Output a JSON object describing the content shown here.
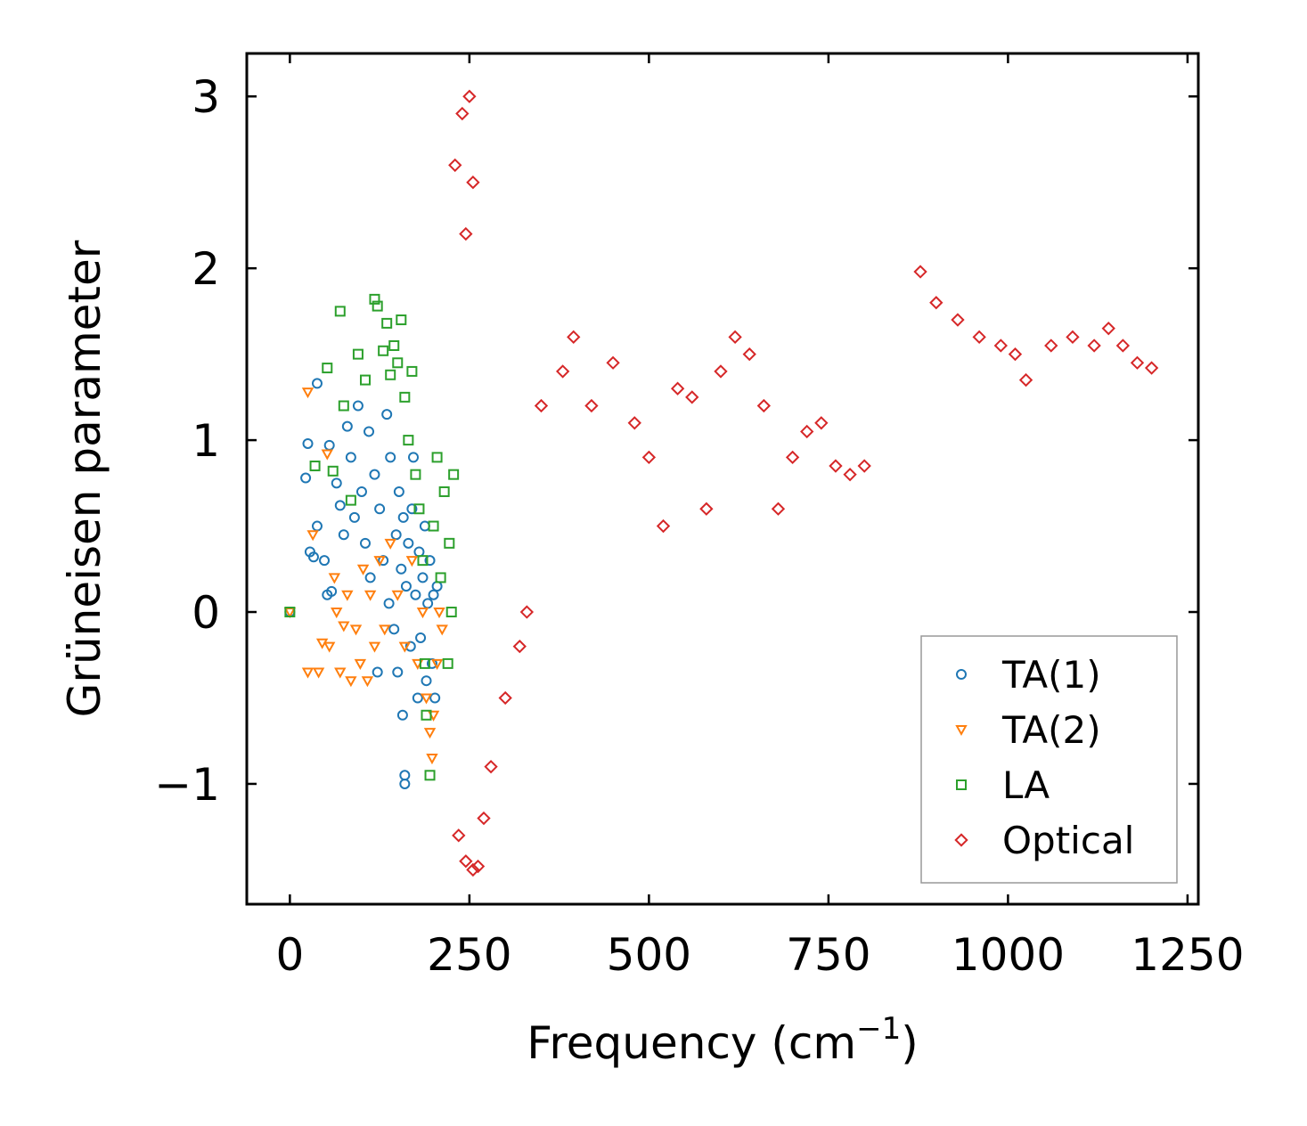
{
  "chart_data": {
    "type": "scatter",
    "title": "",
    "xlabel": "Frequency (cm",
    "xlabel_sup": "−1",
    "xlabel_end": ")",
    "ylabel": "Grüneisen parameter",
    "xlim": [
      -60,
      1265
    ],
    "ylim": [
      -1.7,
      3.25
    ],
    "xticks": [
      0,
      250,
      500,
      750,
      1000,
      1250
    ],
    "xtick_labels": [
      "0",
      "250",
      "500",
      "750",
      "1000",
      "1250"
    ],
    "yticks": [
      -1,
      0,
      1,
      2,
      3
    ],
    "ytick_labels": [
      "−1",
      "0",
      "1",
      "2",
      "3"
    ],
    "grid": false,
    "legend_position": "bottom-right",
    "series": [
      {
        "name": "TA(1)",
        "marker": "circle",
        "color": "#1f77b4",
        "points": [
          [
            0,
            0
          ],
          [
            25,
            0.98
          ],
          [
            22,
            0.78
          ],
          [
            28,
            0.35
          ],
          [
            38,
            1.33
          ],
          [
            33,
            0.32
          ],
          [
            38,
            0.5
          ],
          [
            48,
            0.3
          ],
          [
            55,
            0.97
          ],
          [
            52,
            0.1
          ],
          [
            58,
            0.12
          ],
          [
            65,
            0.75
          ],
          [
            70,
            0.62
          ],
          [
            75,
            0.45
          ],
          [
            80,
            1.08
          ],
          [
            85,
            0.9
          ],
          [
            90,
            0.55
          ],
          [
            95,
            1.2
          ],
          [
            100,
            0.7
          ],
          [
            105,
            0.4
          ],
          [
            110,
            1.05
          ],
          [
            112,
            0.2
          ],
          [
            118,
            0.8
          ],
          [
            122,
            -0.35
          ],
          [
            125,
            0.6
          ],
          [
            130,
            0.3
          ],
          [
            135,
            1.15
          ],
          [
            138,
            0.05
          ],
          [
            140,
            0.9
          ],
          [
            145,
            -0.1
          ],
          [
            148,
            0.45
          ],
          [
            150,
            -0.35
          ],
          [
            152,
            0.7
          ],
          [
            155,
            0.25
          ],
          [
            157,
            -0.6
          ],
          [
            158,
            0.55
          ],
          [
            160,
            -0.95
          ],
          [
            160,
            -1.0
          ],
          [
            162,
            0.15
          ],
          [
            165,
            0.4
          ],
          [
            168,
            -0.2
          ],
          [
            170,
            0.6
          ],
          [
            172,
            0.9
          ],
          [
            175,
            0.1
          ],
          [
            178,
            -0.5
          ],
          [
            180,
            0.35
          ],
          [
            182,
            -0.15
          ],
          [
            185,
            0.2
          ],
          [
            188,
            0.5
          ],
          [
            190,
            -0.4
          ],
          [
            192,
            0.05
          ],
          [
            195,
            0.3
          ],
          [
            198,
            -0.3
          ],
          [
            200,
            0.1
          ],
          [
            202,
            -0.5
          ],
          [
            205,
            0.15
          ]
        ]
      },
      {
        "name": "TA(2)",
        "marker": "triangle-down",
        "color": "#ff7f0e",
        "points": [
          [
            0,
            0
          ],
          [
            25,
            1.28
          ],
          [
            25,
            -0.35
          ],
          [
            32,
            0.45
          ],
          [
            40,
            -0.35
          ],
          [
            45,
            -0.18
          ],
          [
            52,
            0.92
          ],
          [
            55,
            -0.2
          ],
          [
            62,
            0.2
          ],
          [
            65,
            0.0
          ],
          [
            70,
            -0.35
          ],
          [
            75,
            -0.08
          ],
          [
            80,
            0.1
          ],
          [
            85,
            -0.4
          ],
          [
            92,
            -0.1
          ],
          [
            98,
            -0.3
          ],
          [
            102,
            0.25
          ],
          [
            108,
            -0.4
          ],
          [
            112,
            0.1
          ],
          [
            118,
            -0.2
          ],
          [
            125,
            0.3
          ],
          [
            132,
            -0.1
          ],
          [
            140,
            0.4
          ],
          [
            150,
            0.1
          ],
          [
            160,
            -0.2
          ],
          [
            170,
            0.3
          ],
          [
            178,
            -0.3
          ],
          [
            185,
            0.0
          ],
          [
            190,
            -0.5
          ],
          [
            195,
            -0.7
          ],
          [
            198,
            -0.85
          ],
          [
            200,
            -0.6
          ],
          [
            205,
            -0.3
          ],
          [
            208,
            0.0
          ],
          [
            212,
            -0.1
          ]
        ]
      },
      {
        "name": "LA",
        "marker": "square",
        "color": "#2ca02c",
        "points": [
          [
            0,
            0
          ],
          [
            35,
            0.85
          ],
          [
            52,
            1.42
          ],
          [
            60,
            0.82
          ],
          [
            70,
            1.75
          ],
          [
            75,
            1.2
          ],
          [
            85,
            0.65
          ],
          [
            95,
            1.5
          ],
          [
            105,
            1.35
          ],
          [
            118,
            1.82
          ],
          [
            122,
            1.78
          ],
          [
            130,
            1.52
          ],
          [
            135,
            1.68
          ],
          [
            140,
            1.38
          ],
          [
            145,
            1.55
          ],
          [
            150,
            1.45
          ],
          [
            155,
            1.7
          ],
          [
            160,
            1.25
          ],
          [
            165,
            1.0
          ],
          [
            170,
            1.4
          ],
          [
            175,
            0.8
          ],
          [
            180,
            0.6
          ],
          [
            185,
            0.3
          ],
          [
            188,
            -0.3
          ],
          [
            190,
            -0.6
          ],
          [
            195,
            -0.95
          ],
          [
            200,
            0.5
          ],
          [
            205,
            0.9
          ],
          [
            210,
            0.2
          ],
          [
            215,
            0.7
          ],
          [
            220,
            -0.3
          ],
          [
            222,
            0.4
          ],
          [
            225,
            0.0
          ],
          [
            228,
            0.8
          ]
        ]
      },
      {
        "name": "Optical",
        "marker": "diamond",
        "color": "#d62728",
        "points": [
          [
            230,
            2.6
          ],
          [
            240,
            2.9
          ],
          [
            250,
            3.0
          ],
          [
            245,
            2.2
          ],
          [
            255,
            2.5
          ],
          [
            235,
            -1.3
          ],
          [
            245,
            -1.45
          ],
          [
            255,
            -1.5
          ],
          [
            262,
            -1.48
          ],
          [
            270,
            -1.2
          ],
          [
            280,
            -0.9
          ],
          [
            300,
            -0.5
          ],
          [
            320,
            -0.2
          ],
          [
            330,
            0.0
          ],
          [
            350,
            1.2
          ],
          [
            380,
            1.4
          ],
          [
            395,
            1.6
          ],
          [
            420,
            1.2
          ],
          [
            450,
            1.45
          ],
          [
            480,
            1.1
          ],
          [
            500,
            0.9
          ],
          [
            520,
            0.5
          ],
          [
            540,
            1.3
          ],
          [
            560,
            1.25
          ],
          [
            580,
            0.6
          ],
          [
            600,
            1.4
          ],
          [
            620,
            1.6
          ],
          [
            640,
            1.5
          ],
          [
            660,
            1.2
          ],
          [
            680,
            0.6
          ],
          [
            700,
            0.9
          ],
          [
            720,
            1.05
          ],
          [
            740,
            1.1
          ],
          [
            760,
            0.85
          ],
          [
            780,
            0.8
          ],
          [
            800,
            0.85
          ],
          [
            878,
            1.98
          ],
          [
            900,
            1.8
          ],
          [
            930,
            1.7
          ],
          [
            960,
            1.6
          ],
          [
            990,
            1.55
          ],
          [
            1010,
            1.5
          ],
          [
            1025,
            1.35
          ],
          [
            1060,
            1.55
          ],
          [
            1090,
            1.6
          ],
          [
            1120,
            1.55
          ],
          [
            1140,
            1.65
          ],
          [
            1160,
            1.55
          ],
          [
            1180,
            1.45
          ],
          [
            1200,
            1.42
          ]
        ]
      }
    ]
  }
}
